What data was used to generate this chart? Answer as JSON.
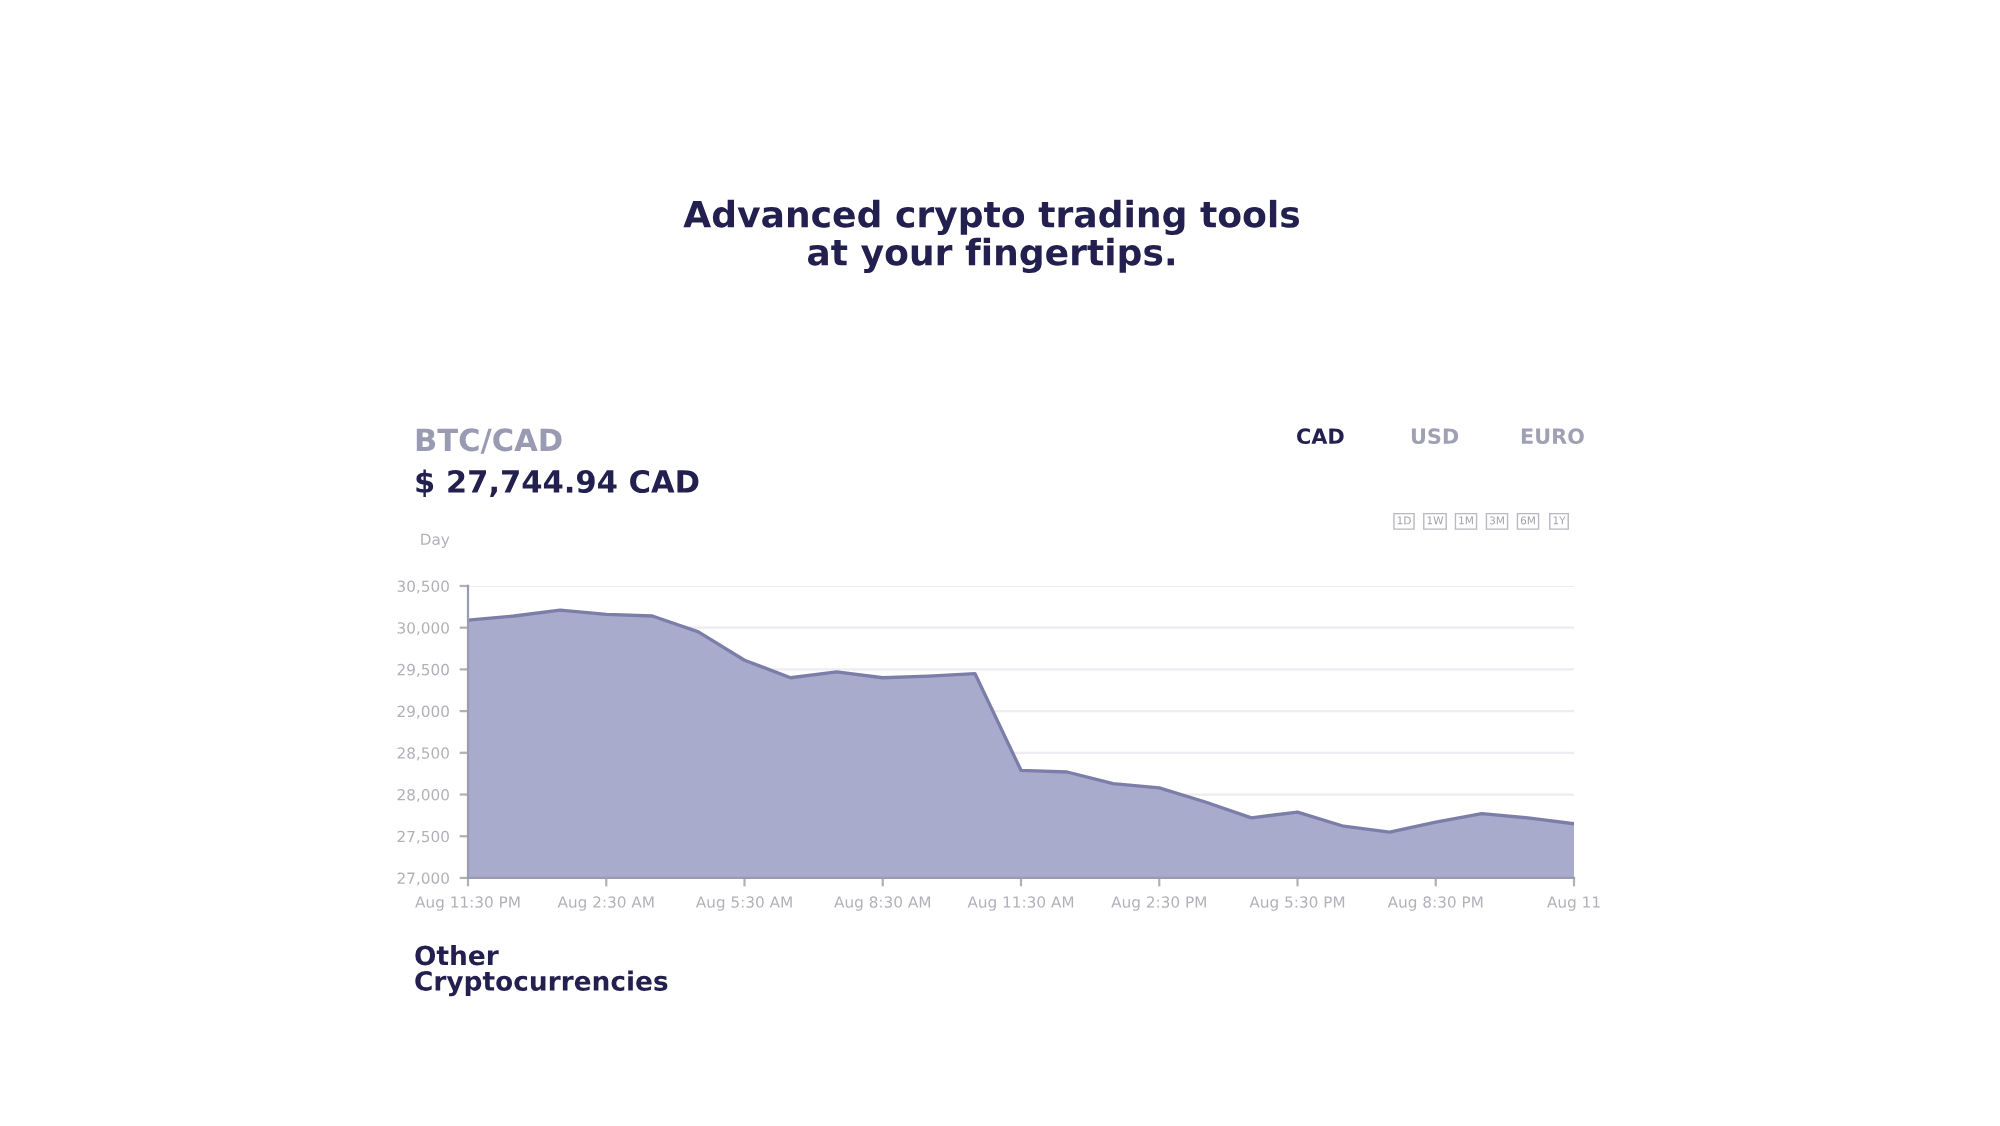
{
  "chart_data": {
    "type": "area",
    "title": "Advanced crypto trading tools\nat your fingertips.",
    "subtitle": "BTC/CAD",
    "ylabel": "Day",
    "annotations": [
      "$ 27,744.94 CAD",
      "CAD",
      "USD",
      "EURO",
      "1D",
      "1W",
      "1M",
      "3M",
      "6M",
      "1Y",
      "Other\nCryptocurrencies"
    ],
    "categories": [
      "Aug 11:30 PM",
      null,
      null,
      "Aug 2:30 AM",
      null,
      null,
      "Aug 5:30 AM",
      null,
      null,
      "Aug 8:30 AM",
      null,
      null,
      "Aug 11:30 AM",
      null,
      null,
      "Aug 2:30 PM",
      null,
      null,
      "Aug 5:30 PM",
      null,
      null,
      "Aug 8:30 PM",
      null,
      null,
      "Aug 11"
    ],
    "series": [
      {
        "color": "#a9abcc",
        "values": [
          30090,
          30140,
          30210,
          30160,
          30140,
          29950,
          29610,
          29400,
          29470,
          29400,
          29420,
          29450,
          28290,
          28270,
          28130,
          28080,
          27910,
          27720,
          27790,
          27620,
          27550,
          27670,
          27770,
          27720,
          27650
        ]
      }
    ],
    "ylim": [
      27000,
      30500
    ],
    "yticks": [
      {
        "value": 27000,
        "label": "27,000"
      },
      {
        "value": 27500,
        "label": "27,500"
      },
      {
        "value": 28000,
        "label": "28,000"
      },
      {
        "value": 28500,
        "label": "28,500"
      },
      {
        "value": 29000,
        "label": "29,000"
      },
      {
        "value": 29500,
        "label": "29,500"
      },
      {
        "value": 30000,
        "label": "30,000"
      },
      {
        "value": 30500,
        "label": "30,500"
      }
    ],
    "grid": "y",
    "marker": "none",
    "line_style": "solid"
  }
}
